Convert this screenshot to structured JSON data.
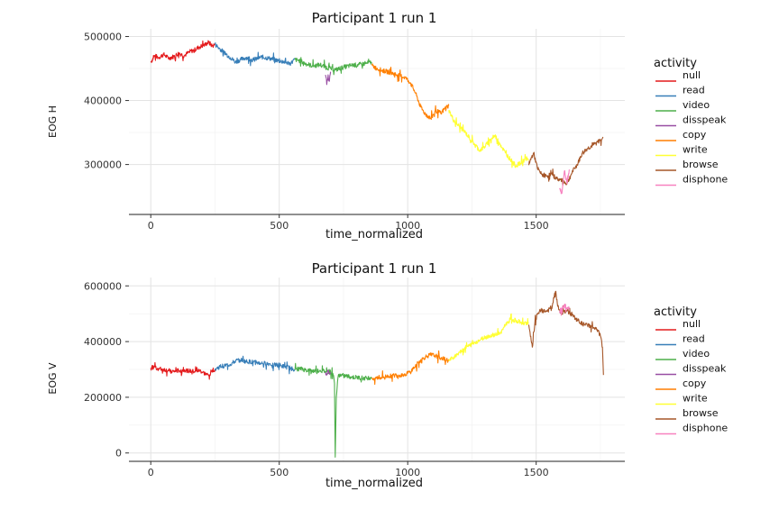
{
  "chart_data": [
    {
      "type": "line",
      "title": "Participant 1 run 1",
      "xlabel": "time_normalized",
      "ylabel": "EOG H",
      "xlim": [
        -85,
        1845
      ],
      "ylim": [
        222000,
        512000
      ],
      "xticks": [
        0,
        500,
        1000,
        1500
      ],
      "xtick_labels": [
        "0",
        "500",
        "1000",
        "1500"
      ],
      "yticks": [
        300000,
        400000,
        500000
      ],
      "ytick_labels": [
        "300000",
        "400000",
        "500000"
      ],
      "grid": true,
      "legend_title": "activity",
      "legend_position": "right",
      "series": [
        {
          "name": "null",
          "color": "#e41a1c",
          "points": [
            [
              0,
              460000
            ],
            [
              15,
              470000
            ],
            [
              30,
              467000
            ],
            [
              50,
              472000
            ],
            [
              70,
              466000
            ],
            [
              90,
              469000
            ],
            [
              110,
              474000
            ],
            [
              130,
              470000
            ],
            [
              150,
              476000
            ],
            [
              170,
              479000
            ],
            [
              190,
              484000
            ],
            [
              210,
              487000
            ],
            [
              225,
              491000
            ],
            [
              240,
              485000
            ],
            [
              250,
              488000
            ]
          ]
        },
        {
          "name": "read",
          "color": "#377eb8",
          "points": [
            [
              250,
              488000
            ],
            [
              265,
              482000
            ],
            [
              280,
              477000
            ],
            [
              295,
              472000
            ],
            [
              310,
              467000
            ],
            [
              330,
              460000
            ],
            [
              350,
              464000
            ],
            [
              370,
              467000
            ],
            [
              400,
              463000
            ],
            [
              430,
              468000
            ],
            [
              460,
              466000
            ],
            [
              490,
              463000
            ],
            [
              520,
              460000
            ],
            [
              545,
              458000
            ],
            [
              560,
              464000
            ]
          ]
        },
        {
          "name": "video",
          "color": "#4daf4a",
          "points": [
            [
              560,
              464000
            ],
            [
              580,
              462000
            ],
            [
              600,
              458000
            ],
            [
              630,
              454000
            ],
            [
              660,
              456000
            ],
            [
              680,
              452000
            ],
            [
              700,
              450000
            ],
            [
              720,
              448000
            ],
            [
              750,
              452000
            ],
            [
              780,
              455000
            ],
            [
              810,
              456000
            ],
            [
              840,
              458000
            ],
            [
              860,
              460000
            ]
          ]
        },
        {
          "name": "disspeak",
          "color": "#984ea3",
          "points": [
            [
              680,
              440000
            ],
            [
              685,
              425000
            ],
            [
              690,
              440000
            ],
            [
              695,
              430000
            ],
            [
              700,
              445000
            ]
          ]
        },
        {
          "name": "copy",
          "color": "#ff7f00",
          "points": [
            [
              860,
              455000
            ],
            [
              880,
              450000
            ],
            [
              900,
              447000
            ],
            [
              930,
              444000
            ],
            [
              960,
              440000
            ],
            [
              990,
              436000
            ],
            [
              1010,
              428000
            ],
            [
              1030,
              412000
            ],
            [
              1050,
              390000
            ],
            [
              1070,
              378000
            ],
            [
              1090,
              372000
            ],
            [
              1110,
              384000
            ],
            [
              1130,
              380000
            ],
            [
              1145,
              388000
            ],
            [
              1160,
              392000
            ]
          ]
        },
        {
          "name": "write",
          "color": "#ffff33",
          "points": [
            [
              1160,
              385000
            ],
            [
              1180,
              368000
            ],
            [
              1200,
              360000
            ],
            [
              1220,
              352000
            ],
            [
              1240,
              342000
            ],
            [
              1260,
              332000
            ],
            [
              1280,
              322000
            ],
            [
              1300,
              328000
            ],
            [
              1320,
              338000
            ],
            [
              1340,
              345000
            ],
            [
              1360,
              332000
            ],
            [
              1380,
              318000
            ],
            [
              1400,
              308000
            ],
            [
              1420,
              298000
            ],
            [
              1440,
              302000
            ],
            [
              1460,
              310000
            ],
            [
              1470,
              306000
            ]
          ]
        },
        {
          "name": "browse",
          "color": "#a65628",
          "points": [
            [
              1470,
              300000
            ],
            [
              1490,
              318000
            ],
            [
              1505,
              294000
            ],
            [
              1520,
              285000
            ],
            [
              1540,
              282000
            ],
            [
              1560,
              285000
            ],
            [
              1580,
              278000
            ],
            [
              1600,
              275000
            ],
            [
              1620,
              270000
            ],
            [
              1640,
              288000
            ],
            [
              1660,
              300000
            ],
            [
              1680,
              318000
            ],
            [
              1700,
              325000
            ],
            [
              1720,
              330000
            ],
            [
              1740,
              335000
            ],
            [
              1760,
              343000
            ]
          ]
        },
        {
          "name": "disphone",
          "color": "#f781bf",
          "points": [
            [
              1590,
              262000
            ],
            [
              1600,
              255000
            ],
            [
              1605,
              275000
            ],
            [
              1610,
              290000
            ],
            [
              1620,
              270000
            ],
            [
              1630,
              292000
            ]
          ]
        }
      ]
    },
    {
      "type": "line",
      "title": "Participant 1 run 1",
      "xlabel": "time_normalized",
      "ylabel": "EOG V",
      "xlim": [
        -85,
        1845
      ],
      "ylim": [
        -30000,
        630000
      ],
      "xticks": [
        0,
        500,
        1000,
        1500
      ],
      "xtick_labels": [
        "0",
        "500",
        "1000",
        "1500"
      ],
      "yticks": [
        0,
        200000,
        400000,
        600000
      ],
      "ytick_labels": [
        "0",
        "200000",
        "400000",
        "600000"
      ],
      "grid": true,
      "legend_title": "activity",
      "legend_position": "right",
      "series": [
        {
          "name": "null",
          "color": "#e41a1c",
          "points": [
            [
              0,
              305000
            ],
            [
              15,
              310000
            ],
            [
              30,
              302000
            ],
            [
              50,
              300000
            ],
            [
              70,
              295000
            ],
            [
              90,
              292000
            ],
            [
              110,
              296000
            ],
            [
              130,
              298000
            ],
            [
              150,
              294000
            ],
            [
              170,
              292000
            ],
            [
              190,
              296000
            ],
            [
              210,
              285000
            ],
            [
              225,
              278000
            ],
            [
              240,
              298000
            ],
            [
              250,
              300000
            ]
          ]
        },
        {
          "name": "read",
          "color": "#377eb8",
          "points": [
            [
              250,
              300000
            ],
            [
              270,
              310000
            ],
            [
              290,
              314000
            ],
            [
              310,
              318000
            ],
            [
              330,
              330000
            ],
            [
              350,
              334000
            ],
            [
              370,
              328000
            ],
            [
              400,
              326000
            ],
            [
              430,
              322000
            ],
            [
              460,
              320000
            ],
            [
              490,
              316000
            ],
            [
              520,
              310000
            ],
            [
              545,
              304000
            ],
            [
              560,
              300000
            ]
          ]
        },
        {
          "name": "video",
          "color": "#4daf4a",
          "points": [
            [
              560,
              300000
            ],
            [
              580,
              302000
            ],
            [
              600,
              298000
            ],
            [
              630,
              294000
            ],
            [
              660,
              296000
            ],
            [
              680,
              292000
            ],
            [
              700,
              290000
            ],
            [
              710,
              280000
            ],
            [
              715,
              250000
            ],
            [
              718,
              -15000
            ],
            [
              722,
              200000
            ],
            [
              730,
              280000
            ],
            [
              750,
              278000
            ],
            [
              780,
              272000
            ],
            [
              810,
              270000
            ],
            [
              840,
              268000
            ],
            [
              860,
              272000
            ]
          ]
        },
        {
          "name": "disspeak",
          "color": "#984ea3",
          "points": [
            [
              680,
              290000
            ],
            [
              685,
              280000
            ],
            [
              690,
              295000
            ],
            [
              695,
              285000
            ],
            [
              700,
              290000
            ]
          ]
        },
        {
          "name": "copy",
          "color": "#ff7f00",
          "points": [
            [
              860,
              268000
            ],
            [
              890,
              270000
            ],
            [
              920,
              275000
            ],
            [
              950,
              278000
            ],
            [
              980,
              280000
            ],
            [
              1010,
              290000
            ],
            [
              1030,
              312000
            ],
            [
              1050,
              332000
            ],
            [
              1070,
              345000
            ],
            [
              1090,
              352000
            ],
            [
              1110,
              348000
            ],
            [
              1130,
              342000
            ],
            [
              1145,
              336000
            ],
            [
              1160,
              330000
            ]
          ]
        },
        {
          "name": "write",
          "color": "#ffff33",
          "points": [
            [
              1160,
              330000
            ],
            [
              1180,
              345000
            ],
            [
              1200,
              362000
            ],
            [
              1220,
              375000
            ],
            [
              1240,
              385000
            ],
            [
              1260,
              395000
            ],
            [
              1280,
              405000
            ],
            [
              1300,
              415000
            ],
            [
              1320,
              420000
            ],
            [
              1340,
              425000
            ],
            [
              1360,
              430000
            ],
            [
              1380,
              460000
            ],
            [
              1400,
              480000
            ],
            [
              1420,
              476000
            ],
            [
              1440,
              470000
            ],
            [
              1460,
              466000
            ],
            [
              1470,
              470000
            ]
          ]
        },
        {
          "name": "browse",
          "color": "#a65628",
          "points": [
            [
              1470,
              460000
            ],
            [
              1485,
              380000
            ],
            [
              1495,
              470000
            ],
            [
              1505,
              500000
            ],
            [
              1520,
              512000
            ],
            [
              1540,
              508000
            ],
            [
              1560,
              520000
            ],
            [
              1575,
              580000
            ],
            [
              1585,
              530000
            ],
            [
              1595,
              502000
            ],
            [
              1620,
              512000
            ],
            [
              1640,
              495000
            ],
            [
              1660,
              478000
            ],
            [
              1680,
              462000
            ],
            [
              1700,
              458000
            ],
            [
              1720,
              452000
            ],
            [
              1740,
              438000
            ],
            [
              1750,
              420000
            ],
            [
              1758,
              380000
            ],
            [
              1762,
              280000
            ]
          ]
        },
        {
          "name": "disphone",
          "color": "#f781bf",
          "points": [
            [
              1590,
              508000
            ],
            [
              1600,
              520000
            ],
            [
              1610,
              530000
            ],
            [
              1620,
              522000
            ],
            [
              1630,
              515000
            ]
          ]
        }
      ]
    }
  ]
}
